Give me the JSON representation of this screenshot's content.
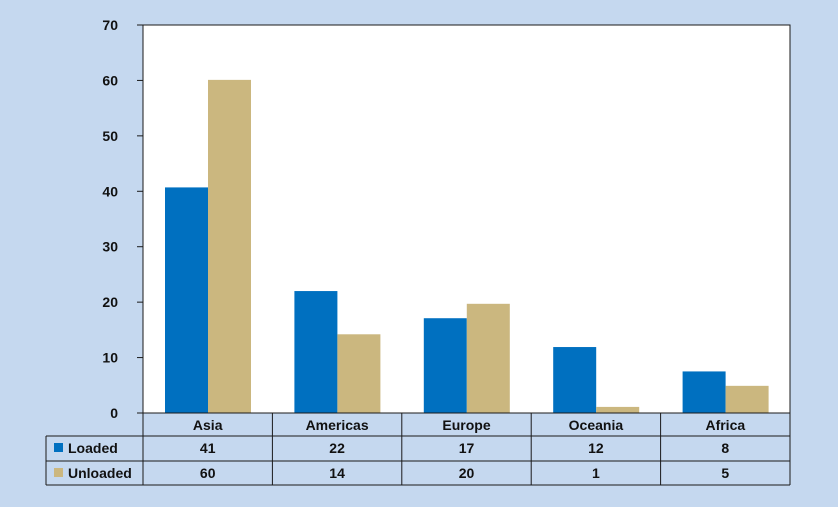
{
  "chart_data": {
    "type": "bar",
    "categories": [
      "Asia",
      "Americas",
      "Europe",
      "Oceania",
      "Africa"
    ],
    "series": [
      {
        "name": "Loaded",
        "values": [
          41,
          22,
          17,
          12,
          8
        ],
        "plot_values": [
          40.7,
          22.0,
          17.1,
          11.9,
          7.5
        ],
        "color": "#0070c0"
      },
      {
        "name": "Unloaded",
        "values": [
          60,
          14,
          20,
          1,
          5
        ],
        "plot_values": [
          60.1,
          14.2,
          19.7,
          1.1,
          4.9
        ],
        "color": "#cbb77f"
      }
    ],
    "ylim": [
      0,
      70
    ],
    "yticks": [
      0,
      10,
      20,
      30,
      40,
      50,
      60,
      70
    ],
    "grid": false,
    "legend": "data-table-left"
  },
  "colors": {
    "background": "#c5d8ef",
    "plot_area": "#ffffff",
    "border": "#1a1a1a"
  }
}
